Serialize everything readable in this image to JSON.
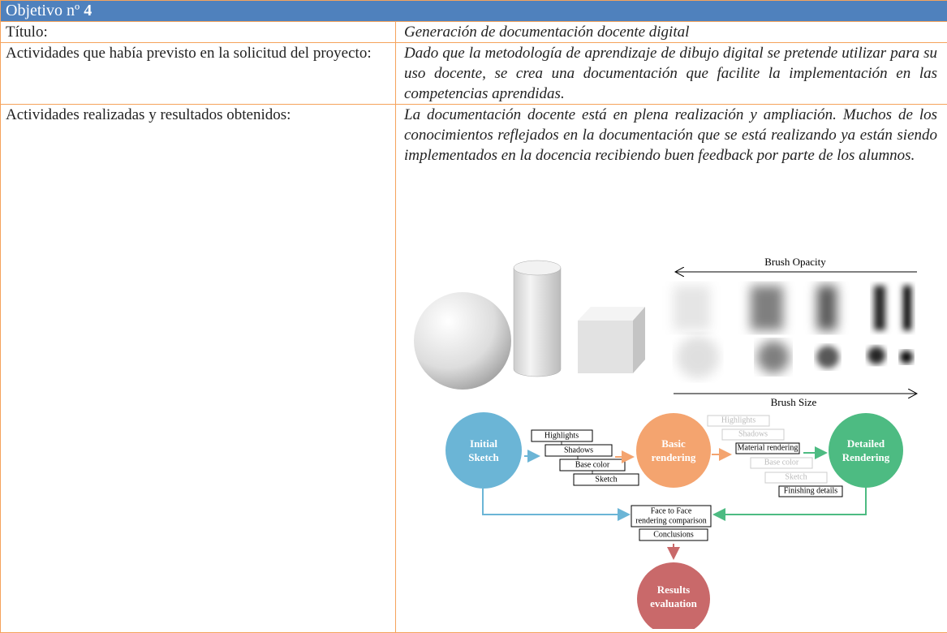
{
  "header": {
    "title": "Objetivo nº",
    "number": "4"
  },
  "table": {
    "rows": [
      [
        "Título:",
        "Generación de documentación docente digital"
      ],
      [
        "Actividades que había previsto en la solicitud del proyecto:",
        "Dado que la metodología de aprendizaje de dibujo digital se pretende utilizar para su uso docente, se crea una documentación que facilite la implementación en las competencias aprendidas."
      ],
      [
        "Actividades realizadas y resultados obtenidos:",
        "La documentación docente está en plena realización y ampliación. Muchos de los conocimientos reflejados en la documentación que se está realizando ya están siendo implementados en la docencia recibiendo buen feedback por parte de los alumnos."
      ]
    ]
  },
  "figure": {
    "brush_opacity": "Brush Opacity",
    "brush_size": "Brush Size",
    "nodes": [
      [
        "Initial",
        "Sketch"
      ],
      [
        "Basic",
        "rendering"
      ],
      [
        "Detailed",
        "Rendering"
      ],
      [
        "Results",
        "evaluation"
      ]
    ],
    "steps_basic": [
      "Highlights",
      "Shadows",
      "Base color",
      "Sketch"
    ],
    "steps_detailed": [
      "Highlights",
      "Shadows",
      "Material rendering",
      "Base color",
      "Sketch",
      "Finishing details"
    ],
    "comparison": [
      "Face to Face",
      "rendering comparison"
    ],
    "conclusions": "Conclusions"
  }
}
